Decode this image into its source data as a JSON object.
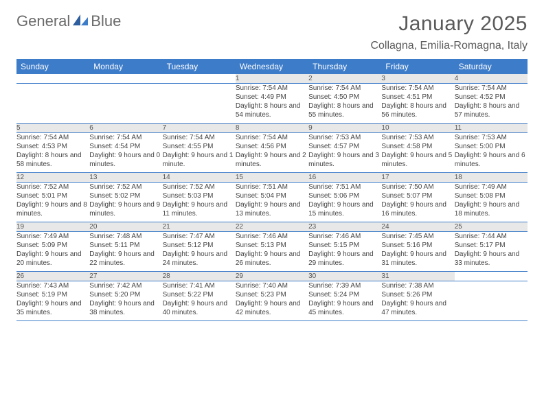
{
  "brand": {
    "word1": "General",
    "word2": "Blue"
  },
  "title": "January 2025",
  "location": "Collagna, Emilia-Romagna, Italy",
  "colors": {
    "accent": "#3d7cc9",
    "header_text": "#ffffff",
    "daynum_bg": "#e8e8e8",
    "body_text": "#404040",
    "background": "#ffffff"
  },
  "weekdays": [
    "Sunday",
    "Monday",
    "Tuesday",
    "Wednesday",
    "Thursday",
    "Friday",
    "Saturday"
  ],
  "weeks": [
    [
      null,
      null,
      null,
      {
        "n": "1",
        "sr": "7:54 AM",
        "ss": "4:49 PM",
        "dl": "8 hours and 54 minutes."
      },
      {
        "n": "2",
        "sr": "7:54 AM",
        "ss": "4:50 PM",
        "dl": "8 hours and 55 minutes."
      },
      {
        "n": "3",
        "sr": "7:54 AM",
        "ss": "4:51 PM",
        "dl": "8 hours and 56 minutes."
      },
      {
        "n": "4",
        "sr": "7:54 AM",
        "ss": "4:52 PM",
        "dl": "8 hours and 57 minutes."
      }
    ],
    [
      {
        "n": "5",
        "sr": "7:54 AM",
        "ss": "4:53 PM",
        "dl": "8 hours and 58 minutes."
      },
      {
        "n": "6",
        "sr": "7:54 AM",
        "ss": "4:54 PM",
        "dl": "9 hours and 0 minutes."
      },
      {
        "n": "7",
        "sr": "7:54 AM",
        "ss": "4:55 PM",
        "dl": "9 hours and 1 minute."
      },
      {
        "n": "8",
        "sr": "7:54 AM",
        "ss": "4:56 PM",
        "dl": "9 hours and 2 minutes."
      },
      {
        "n": "9",
        "sr": "7:53 AM",
        "ss": "4:57 PM",
        "dl": "9 hours and 3 minutes."
      },
      {
        "n": "10",
        "sr": "7:53 AM",
        "ss": "4:58 PM",
        "dl": "9 hours and 5 minutes."
      },
      {
        "n": "11",
        "sr": "7:53 AM",
        "ss": "5:00 PM",
        "dl": "9 hours and 6 minutes."
      }
    ],
    [
      {
        "n": "12",
        "sr": "7:52 AM",
        "ss": "5:01 PM",
        "dl": "9 hours and 8 minutes."
      },
      {
        "n": "13",
        "sr": "7:52 AM",
        "ss": "5:02 PM",
        "dl": "9 hours and 9 minutes."
      },
      {
        "n": "14",
        "sr": "7:52 AM",
        "ss": "5:03 PM",
        "dl": "9 hours and 11 minutes."
      },
      {
        "n": "15",
        "sr": "7:51 AM",
        "ss": "5:04 PM",
        "dl": "9 hours and 13 minutes."
      },
      {
        "n": "16",
        "sr": "7:51 AM",
        "ss": "5:06 PM",
        "dl": "9 hours and 15 minutes."
      },
      {
        "n": "17",
        "sr": "7:50 AM",
        "ss": "5:07 PM",
        "dl": "9 hours and 16 minutes."
      },
      {
        "n": "18",
        "sr": "7:49 AM",
        "ss": "5:08 PM",
        "dl": "9 hours and 18 minutes."
      }
    ],
    [
      {
        "n": "19",
        "sr": "7:49 AM",
        "ss": "5:09 PM",
        "dl": "9 hours and 20 minutes."
      },
      {
        "n": "20",
        "sr": "7:48 AM",
        "ss": "5:11 PM",
        "dl": "9 hours and 22 minutes."
      },
      {
        "n": "21",
        "sr": "7:47 AM",
        "ss": "5:12 PM",
        "dl": "9 hours and 24 minutes."
      },
      {
        "n": "22",
        "sr": "7:46 AM",
        "ss": "5:13 PM",
        "dl": "9 hours and 26 minutes."
      },
      {
        "n": "23",
        "sr": "7:46 AM",
        "ss": "5:15 PM",
        "dl": "9 hours and 29 minutes."
      },
      {
        "n": "24",
        "sr": "7:45 AM",
        "ss": "5:16 PM",
        "dl": "9 hours and 31 minutes."
      },
      {
        "n": "25",
        "sr": "7:44 AM",
        "ss": "5:17 PM",
        "dl": "9 hours and 33 minutes."
      }
    ],
    [
      {
        "n": "26",
        "sr": "7:43 AM",
        "ss": "5:19 PM",
        "dl": "9 hours and 35 minutes."
      },
      {
        "n": "27",
        "sr": "7:42 AM",
        "ss": "5:20 PM",
        "dl": "9 hours and 38 minutes."
      },
      {
        "n": "28",
        "sr": "7:41 AM",
        "ss": "5:22 PM",
        "dl": "9 hours and 40 minutes."
      },
      {
        "n": "29",
        "sr": "7:40 AM",
        "ss": "5:23 PM",
        "dl": "9 hours and 42 minutes."
      },
      {
        "n": "30",
        "sr": "7:39 AM",
        "ss": "5:24 PM",
        "dl": "9 hours and 45 minutes."
      },
      {
        "n": "31",
        "sr": "7:38 AM",
        "ss": "5:26 PM",
        "dl": "9 hours and 47 minutes."
      },
      null
    ]
  ],
  "labels": {
    "sunrise": "Sunrise:",
    "sunset": "Sunset:",
    "daylight": "Daylight:"
  }
}
